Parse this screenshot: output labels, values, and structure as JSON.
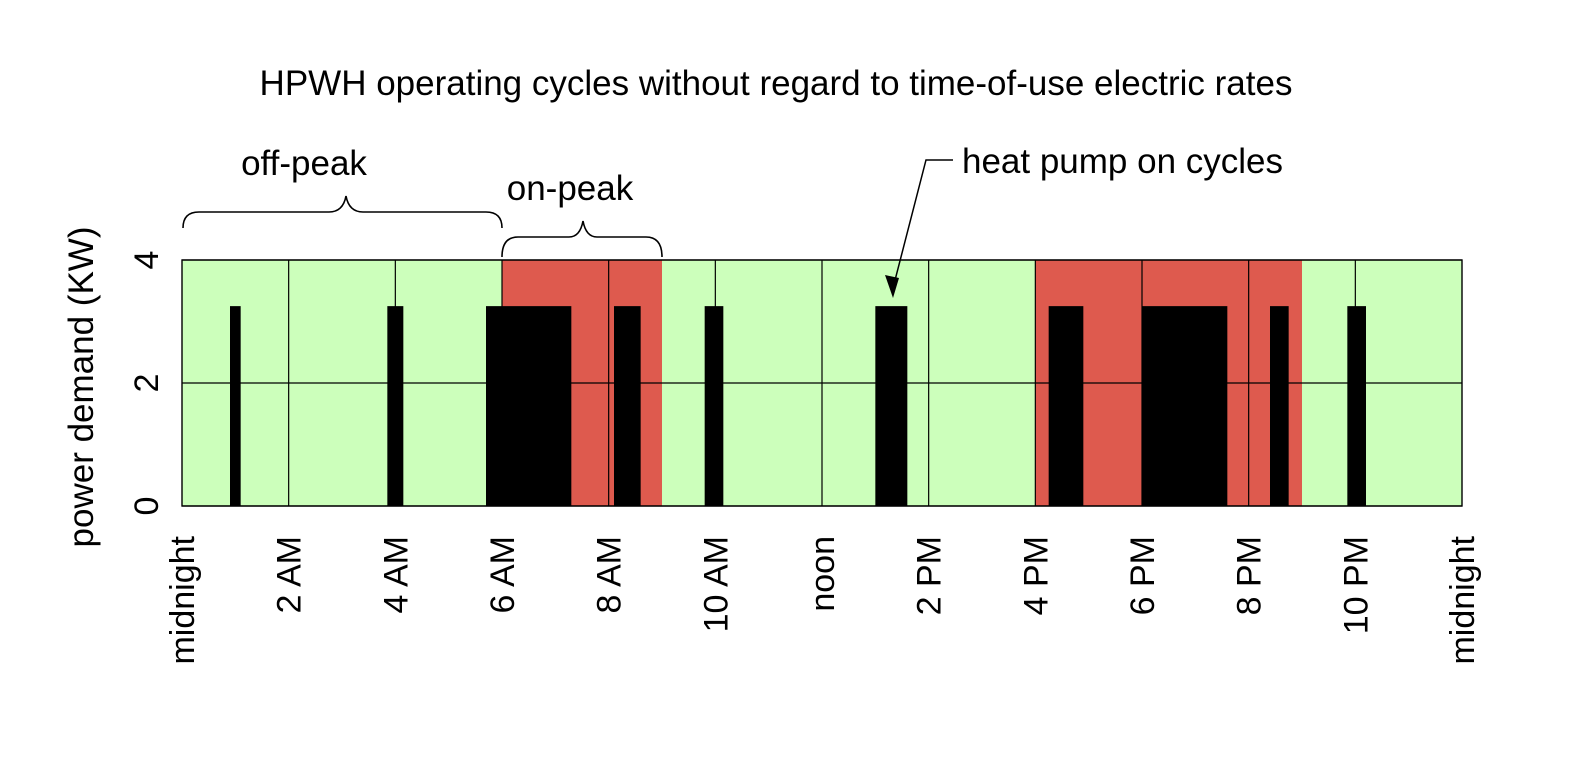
{
  "chart_data": {
    "type": "bar",
    "title": "HPWH operating cycles without regard to time-of-use electric rates",
    "ylabel": "power demand (KW)",
    "xlabel": "",
    "xlim_hours": [
      0,
      24
    ],
    "ylim": [
      0,
      4
    ],
    "yticks": [
      "0",
      "2",
      "4"
    ],
    "xticks": [
      {
        "hour": 0,
        "label": "midnight"
      },
      {
        "hour": 2,
        "label": "2 AM"
      },
      {
        "hour": 4,
        "label": "4 AM"
      },
      {
        "hour": 6,
        "label": "6 AM"
      },
      {
        "hour": 8,
        "label": "8 AM"
      },
      {
        "hour": 10,
        "label": "10 AM"
      },
      {
        "hour": 12,
        "label": "noon"
      },
      {
        "hour": 14,
        "label": "2 PM"
      },
      {
        "hour": 16,
        "label": "4 PM"
      },
      {
        "hour": 18,
        "label": "6 PM"
      },
      {
        "hour": 20,
        "label": "8 PM"
      },
      {
        "hour": 22,
        "label": "10 PM"
      },
      {
        "hour": 24,
        "label": "midnight"
      }
    ],
    "rate_periods": [
      {
        "name": "off-peak",
        "start": 0,
        "end": 6,
        "color": "#ccffbb"
      },
      {
        "name": "on-peak",
        "start": 6,
        "end": 9,
        "color": "#de5a4e"
      },
      {
        "name": "off-peak",
        "start": 9,
        "end": 16,
        "color": "#ccffbb"
      },
      {
        "name": "on-peak",
        "start": 16,
        "end": 21,
        "color": "#de5a4e"
      },
      {
        "name": "off-peak",
        "start": 21,
        "end": 24,
        "color": "#ccffbb"
      }
    ],
    "series": [
      {
        "name": "heat pump on cycles",
        "color": "#000000",
        "power_kw": 3.25,
        "cycles": [
          {
            "start": 0.9,
            "end": 1.1
          },
          {
            "start": 3.85,
            "end": 4.15
          },
          {
            "start": 5.7,
            "end": 7.3
          },
          {
            "start": 8.1,
            "end": 8.6
          },
          {
            "start": 9.8,
            "end": 10.15
          },
          {
            "start": 13.0,
            "end": 13.6
          },
          {
            "start": 16.25,
            "end": 16.9
          },
          {
            "start": 18.0,
            "end": 19.6
          },
          {
            "start": 20.4,
            "end": 20.75
          },
          {
            "start": 21.85,
            "end": 22.2
          }
        ]
      }
    ],
    "annotations": {
      "off_peak_label": "off-peak",
      "on_peak_label": "on-peak",
      "cycles_label": "heat pump on cycles"
    }
  }
}
